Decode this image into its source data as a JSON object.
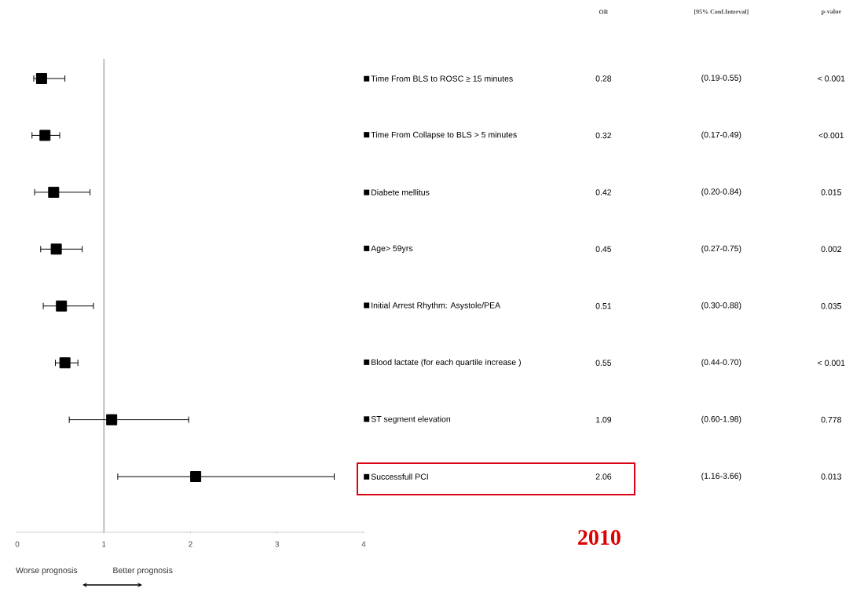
{
  "chart_data": {
    "type": "scatter",
    "orientation": "horizontal",
    "categories": [
      "Time From BLS to ROSC ≥ 15 minutes",
      "Time From Collapse to BLS > 5 minutes",
      "Diabete mellitus",
      "Age> 59yrs",
      "Initial Arrest Rhythm: Asystole/PEA",
      "Blood lactate (for each quartile increase )",
      "ST segment elevation",
      "Successfull PCI"
    ],
    "values": [
      0.28,
      0.32,
      0.42,
      0.45,
      0.51,
      0.55,
      1.09,
      2.06
    ],
    "errors": [
      [
        0.19,
        0.55
      ],
      [
        0.17,
        0.49
      ],
      [
        0.2,
        0.84
      ],
      [
        0.27,
        0.75
      ],
      [
        0.3,
        0.88
      ],
      [
        0.44,
        0.7
      ],
      [
        0.6,
        1.98
      ],
      [
        1.16,
        3.66
      ]
    ],
    "value_labels": [
      "0.28",
      "0.32",
      "0.42",
      "0.45",
      "0.51",
      "0.55",
      "1.09",
      "2.06"
    ],
    "color": "#000000",
    "marker": "square",
    "xlim": [
      0,
      4
    ],
    "xticks": [
      0,
      1,
      2,
      3,
      4
    ],
    "ref_lines": [
      {
        "axis": "x",
        "value": 1,
        "color": "#808080"
      }
    ],
    "annotations": [
      "OR",
      "[95% Conf.Interval]",
      "p-value",
      "(0.19-0.55)",
      "(0.17-0.49)",
      "(0.20-0.84)",
      "(0.27-0.75)",
      "(0.30-0.88)",
      "(0.44-0.70)",
      "(0.60-1.98)",
      "(1.16-3.66)",
      "< 0.001",
      "<0.001",
      "0.015",
      "0.002",
      "0.035",
      "< 0.001",
      "0.778",
      "0.013",
      "2010",
      "Worse prognosis",
      "Better prognosis"
    ]
  }
}
